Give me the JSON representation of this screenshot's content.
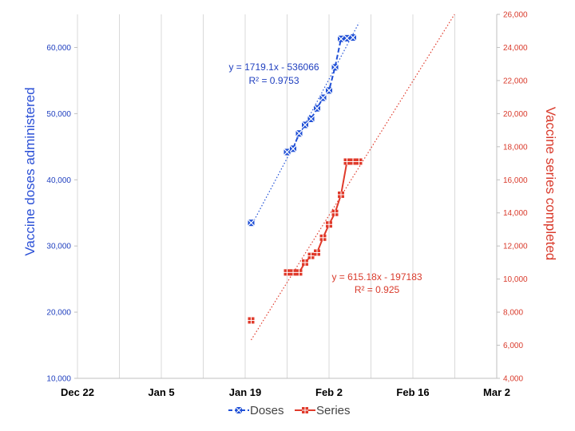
{
  "chart_data": {
    "type": "line",
    "title": "",
    "xlabel": "",
    "ylabel_left": "Vaccine doses administered",
    "ylabel_right": "Vaccine series completed",
    "x_ticks": [
      "Dec 22",
      "Jan 5",
      "Jan 19",
      "Feb 2",
      "Feb 16",
      "Mar 2"
    ],
    "y_left_ticks": [
      "10,000",
      "20,000",
      "30,000",
      "40,000",
      "50,000",
      "60,000"
    ],
    "y_right_ticks": [
      "4,000",
      "6,000",
      "8,000",
      "10,000",
      "12,000",
      "14,000",
      "16,000",
      "18,000",
      "20,000",
      "22,000",
      "24,000",
      "26,000"
    ],
    "ylim_left": [
      10000,
      65000
    ],
    "ylim_right": [
      4000,
      26000
    ],
    "xlim": [
      "2020-12-22",
      "2021-03-02"
    ],
    "grid": "vertical",
    "legend_position": "bottom",
    "series": [
      {
        "name": "Doses",
        "axis": "left",
        "color": "#1f4fd6",
        "x": [
          "2021-01-20",
          "2021-01-26",
          "2021-01-27",
          "2021-01-28",
          "2021-01-29",
          "2021-01-30",
          "2021-01-31",
          "2021-02-01",
          "2021-02-02",
          "2021-02-03",
          "2021-02-04",
          "2021-02-05",
          "2021-02-06"
        ],
        "values": [
          33500,
          44200,
          44700,
          47000,
          48300,
          49200,
          50800,
          52400,
          53500,
          57000,
          61300,
          61400,
          61500
        ],
        "trendline": {
          "equation": "y = 1719.1x - 536066",
          "r2": "R² = 0.9753",
          "x_range": [
            "2021-01-20",
            "2021-02-07"
          ]
        }
      },
      {
        "name": "Series",
        "axis": "right",
        "color": "#e03a2b",
        "x": [
          "2021-01-20",
          "2021-01-26",
          "2021-01-27",
          "2021-01-28",
          "2021-01-29",
          "2021-01-30",
          "2021-01-31",
          "2021-02-01",
          "2021-02-02",
          "2021-02-03",
          "2021-02-04",
          "2021-02-05",
          "2021-02-06",
          "2021-02-07"
        ],
        "values": [
          7500,
          10400,
          10400,
          10400,
          11000,
          11400,
          11600,
          12500,
          13300,
          14000,
          15100,
          17100,
          17100,
          17100
        ],
        "trendline": {
          "equation": "y = 615.18x - 197183",
          "r2": "R² = 0.925",
          "x_range": [
            "2021-01-20",
            "2021-02-26"
          ]
        }
      }
    ]
  }
}
